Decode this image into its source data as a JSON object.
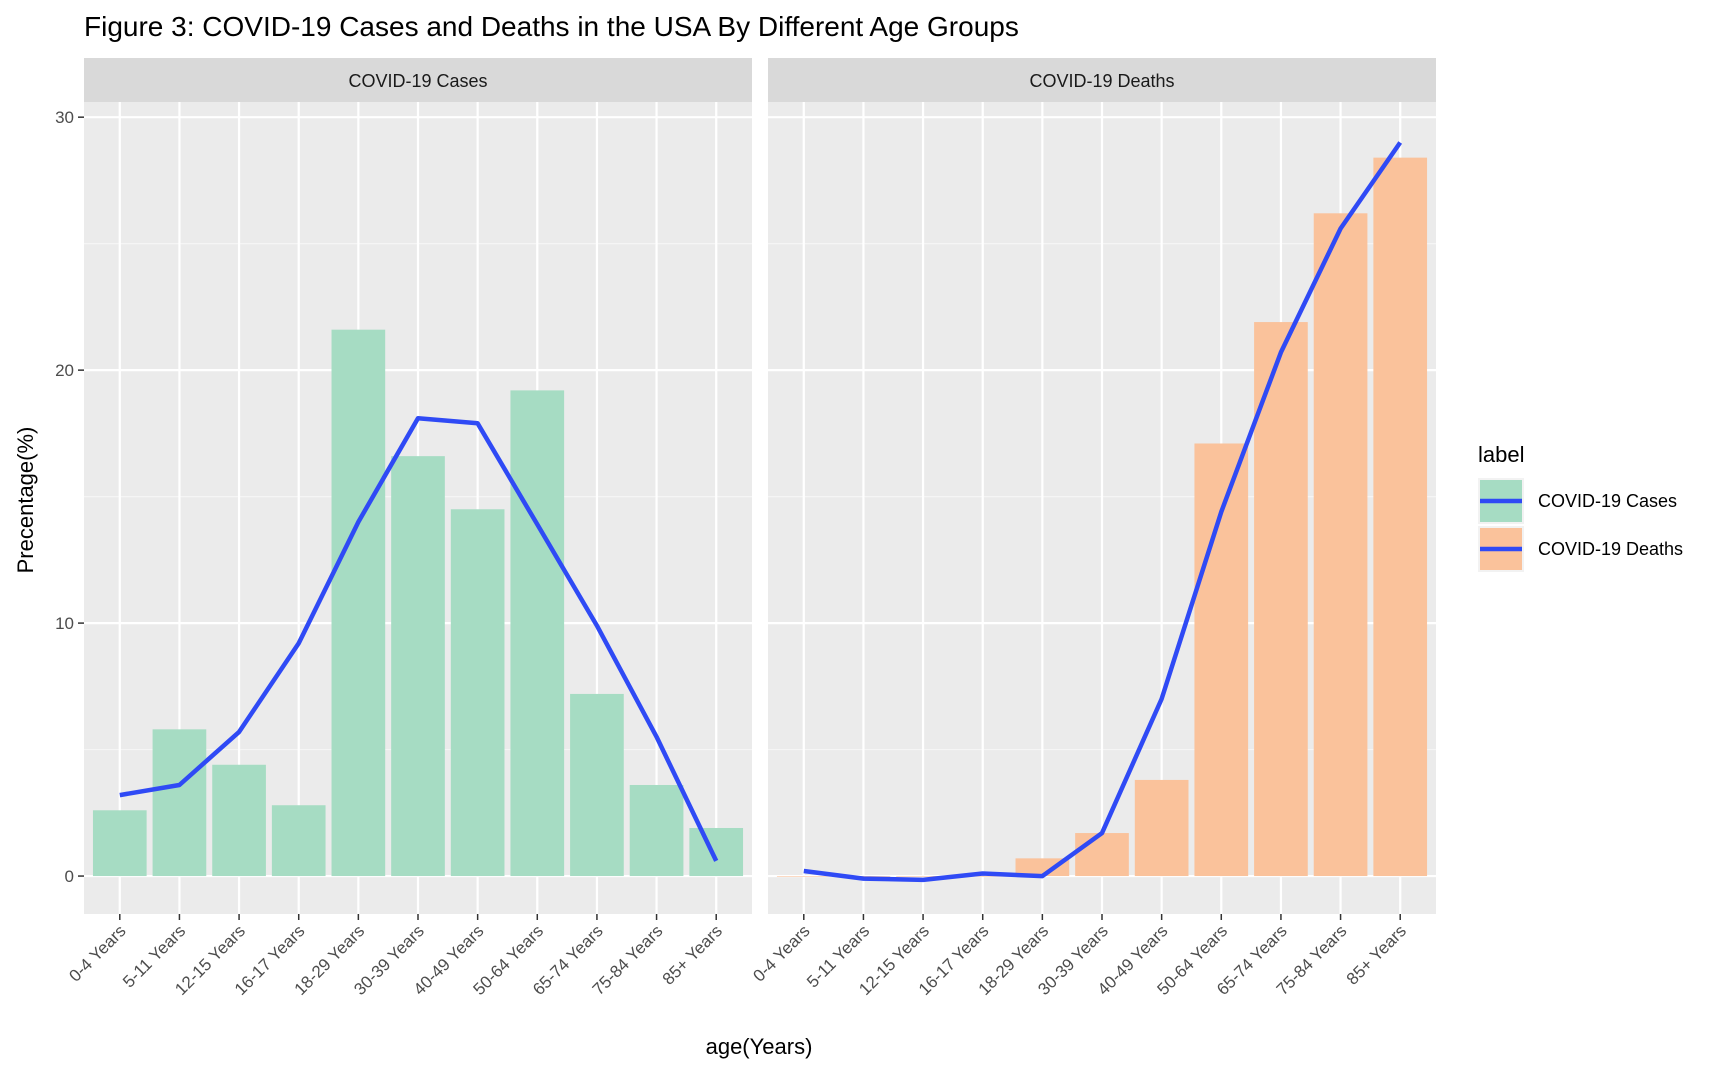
{
  "chart_data": {
    "type": "bar",
    "title": "Figure 3: COVID-19 Cases and Deaths in the USA By Different Age Groups",
    "xlabel": "age(Years)",
    "ylabel": "Precentage(%)",
    "ylim": [
      -1.5,
      30.6
    ],
    "yticks": [
      0,
      10,
      20,
      30
    ],
    "grid": true,
    "legend_position": "right",
    "legend_title": "label",
    "categories": [
      "0-4 Years",
      "5-11 Years",
      "12-15 Years",
      "16-17 Years",
      "18-29 Years",
      "30-39 Years",
      "40-49 Years",
      "50-64 Years",
      "65-74 Years",
      "75-84 Years",
      "85+ Years"
    ],
    "panels": [
      {
        "name": "COVID-19 Cases",
        "bar_color": "#a6dcc3",
        "bars": [
          2.6,
          5.8,
          4.4,
          2.8,
          21.6,
          16.6,
          14.5,
          19.2,
          7.2,
          3.6,
          1.9
        ],
        "line": [
          3.2,
          3.6,
          5.7,
          9.2,
          14.0,
          18.1,
          17.9,
          13.9,
          9.9,
          5.5,
          0.6
        ]
      },
      {
        "name": "COVID-19 Deaths",
        "bar_color": "#fac29b",
        "bars": [
          0.0,
          0.0,
          0.0,
          0.0,
          0.7,
          1.7,
          3.8,
          17.1,
          21.9,
          26.2,
          28.4
        ],
        "line": [
          0.2,
          -0.1,
          -0.15,
          0.1,
          0.0,
          1.7,
          7.0,
          14.4,
          20.7,
          25.6,
          29.0
        ]
      }
    ],
    "line_color": "#2f4af5",
    "legend_entries": [
      "COVID-19 Cases",
      "COVID-19 Deaths"
    ]
  }
}
